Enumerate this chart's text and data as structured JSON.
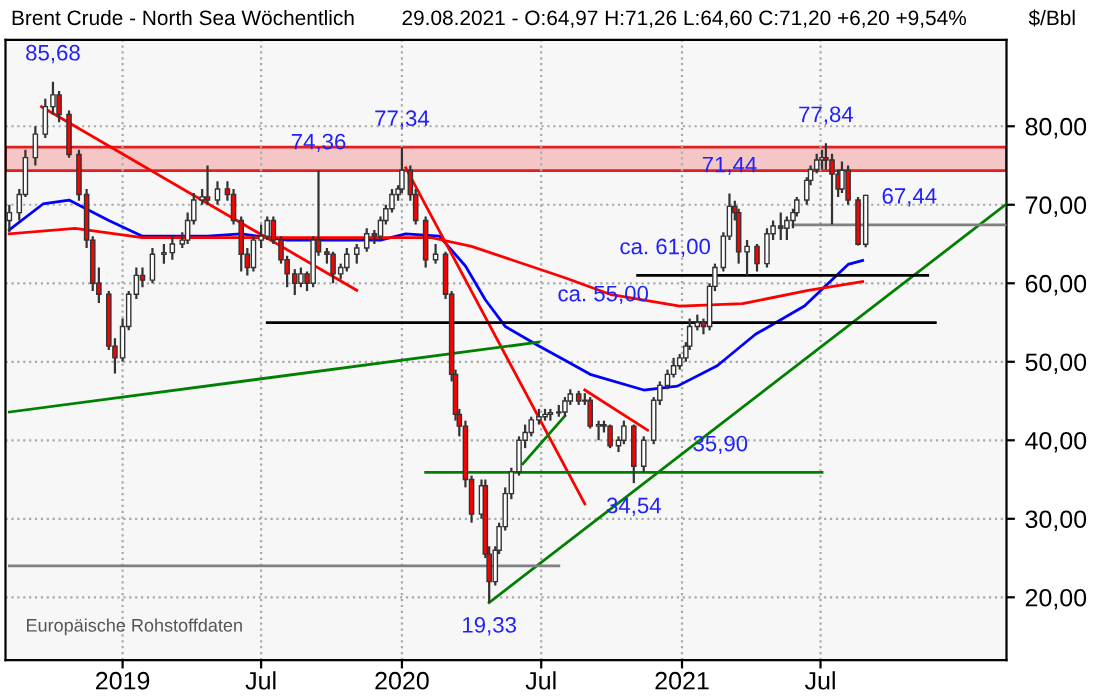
{
  "chart_data": {
    "type": "candlestick",
    "title": "Brent Crude - North Sea Wöchentlich",
    "subtitle": "29.08.2021 - O:64,97 H:71,26 L:64,60 C:71,20 +6,20 +9,54%",
    "ylabel": "$/Bbl",
    "x": [
      "2018-08-06",
      "2018-08-19",
      "2018-08-27",
      "2018-09-09",
      "2018-09-22",
      "2018-10-02",
      "2018-10-10",
      "2018-10-23",
      "2018-11-05",
      "2018-11-15",
      "2018-11-23",
      "2018-12-01",
      "2018-12-14",
      "2018-12-22",
      "2019-01-01",
      "2019-01-09",
      "2019-01-19",
      "2019-01-27",
      "2019-02-09",
      "2019-02-24",
      "2019-03-07",
      "2019-03-20",
      "2019-03-27",
      "2019-04-04",
      "2019-04-15",
      "2019-04-22",
      "2019-05-05",
      "2019-05-18",
      "2019-05-26",
      "2019-06-05",
      "2019-06-13",
      "2019-06-21",
      "2019-07-01",
      "2019-07-09",
      "2019-07-17",
      "2019-07-27",
      "2019-08-04",
      "2019-08-14",
      "2019-08-22",
      "2019-08-30",
      "2019-09-07",
      "2019-09-14",
      "2019-09-25",
      "2019-10-03",
      "2019-10-13",
      "2019-10-21",
      "2019-11-03",
      "2019-11-16",
      "2019-11-26",
      "2019-12-04",
      "2019-12-11",
      "2019-12-19",
      "2019-12-27",
      "2020-01-01",
      "2020-01-12",
      "2020-01-19",
      "2020-02-01",
      "2020-02-14",
      "2020-02-27",
      "2020-03-06",
      "2020-03-11",
      "2020-03-16",
      "2020-03-24",
      "2020-04-01",
      "2020-04-14",
      "2020-04-19",
      "2020-04-24",
      "2020-05-02",
      "2020-05-07",
      "2020-05-15",
      "2020-05-23",
      "2020-06-02",
      "2020-06-10",
      "2020-06-18",
      "2020-06-28",
      "2020-07-06",
      "2020-07-13",
      "2020-07-24",
      "2020-08-01",
      "2020-08-08",
      "2020-08-19",
      "2020-08-27",
      "2020-09-03",
      "2020-09-14",
      "2020-09-21",
      "2020-09-29",
      "2020-10-10",
      "2020-10-17",
      "2020-10-30",
      "2020-11-12",
      "2020-11-25",
      "2020-12-03",
      "2020-12-13",
      "2020-12-21",
      "2020-12-29",
      "2021-01-06",
      "2021-01-11",
      "2021-01-21",
      "2021-01-29",
      "2021-02-06",
      "2021-02-13",
      "2021-02-24",
      "2021-03-04",
      "2021-03-11",
      "2021-03-16",
      "2021-03-27",
      "2021-04-09",
      "2021-04-22",
      "2021-04-30",
      "2021-05-10",
      "2021-05-18",
      "2021-05-26",
      "2021-05-31",
      "2021-06-13",
      "2021-06-18",
      "2021-06-26",
      "2021-07-03",
      "2021-07-08",
      "2021-07-16",
      "2021-07-24",
      "2021-07-29",
      "2021-08-06",
      "2021-08-19",
      "2021-08-29"
    ],
    "ohlc": [
      [
        68,
        70,
        66.5,
        69
      ],
      [
        69,
        72,
        68,
        71.3
      ],
      [
        71.3,
        77,
        71,
        76
      ],
      [
        76,
        80,
        75,
        79
      ],
      [
        79,
        83.5,
        78.5,
        82.5
      ],
      [
        82.5,
        85.68,
        81.5,
        84
      ],
      [
        84,
        84.5,
        80.5,
        81.5
      ],
      [
        81.5,
        82,
        76,
        76.4
      ],
      [
        76.4,
        77,
        70.5,
        71.3
      ],
      [
        71.3,
        72,
        64.5,
        65.5
      ],
      [
        65.5,
        66,
        59,
        60
      ],
      [
        60,
        62,
        57.5,
        58.6
      ],
      [
        58.6,
        59,
        51.5,
        52
      ],
      [
        52,
        53,
        48.5,
        50.5
      ],
      [
        50.5,
        55.5,
        50,
        54.5
      ],
      [
        54.5,
        59,
        54,
        58.6
      ],
      [
        58.6,
        62,
        58,
        61
      ],
      [
        61,
        62,
        59.5,
        60.4
      ],
      [
        60.4,
        64.5,
        60,
        63.7
      ],
      [
        63.7,
        65,
        62.5,
        63.9
      ],
      [
        63.9,
        66,
        63,
        65
      ],
      [
        65,
        66.5,
        64.5,
        65.5
      ],
      [
        65.5,
        69,
        65,
        68
      ],
      [
        68,
        71.5,
        67.5,
        70.6
      ],
      [
        70.6,
        72,
        70,
        71
      ],
      [
        71,
        75,
        70,
        70.6
      ],
      [
        70.6,
        73,
        70,
        72
      ],
      [
        72,
        73,
        70.5,
        71.3
      ],
      [
        71.3,
        72,
        67.5,
        68
      ],
      [
        68,
        68.5,
        61.5,
        63.7
      ],
      [
        63.7,
        64.5,
        61,
        62
      ],
      [
        62,
        66,
        61.5,
        65.5
      ],
      [
        65.5,
        67.5,
        64.5,
        66
      ],
      [
        66,
        68.5,
        65.5,
        68
      ],
      [
        68,
        68.5,
        65,
        65.5
      ],
      [
        65.5,
        66,
        62.5,
        63
      ],
      [
        63,
        63.5,
        59.5,
        61.2
      ],
      [
        61.2,
        61.8,
        58.5,
        60
      ],
      [
        60,
        62,
        59.5,
        61.2
      ],
      [
        61.2,
        61.5,
        59,
        60
      ],
      [
        60,
        66,
        59.5,
        65.5
      ],
      [
        65.5,
        74.36,
        63.5,
        64
      ],
      [
        64,
        64.5,
        62.5,
        63.7
      ],
      [
        63.7,
        64,
        60,
        61.2
      ],
      [
        61.2,
        62.5,
        60.5,
        62
      ],
      [
        62,
        64.5,
        61.5,
        63.7
      ],
      [
        63.7,
        65,
        62.5,
        64.5
      ],
      [
        64.5,
        67,
        64,
        66.3
      ],
      [
        66.3,
        66.8,
        65,
        66
      ],
      [
        66,
        68.5,
        65.5,
        68
      ],
      [
        68,
        70,
        67.5,
        69.5
      ],
      [
        69.5,
        72,
        69,
        71.3
      ],
      [
        71.3,
        72.5,
        70.5,
        72
      ],
      [
        72,
        77.34,
        71.5,
        74.4
      ],
      [
        74.4,
        75,
        70.5,
        71.3
      ],
      [
        71.3,
        72,
        67.5,
        68
      ],
      [
        68,
        68.5,
        62,
        63
      ],
      [
        63,
        65,
        62.5,
        63.7
      ],
      [
        63.7,
        64,
        58,
        58.6
      ],
      [
        58.6,
        59,
        47.5,
        48.4
      ],
      [
        48.4,
        49,
        42.5,
        43.3
      ],
      [
        43.3,
        44,
        40.5,
        41.8
      ],
      [
        41.8,
        42.5,
        34,
        35
      ],
      [
        35,
        35.5,
        29.5,
        30.6
      ],
      [
        30.6,
        35,
        30,
        34.2
      ],
      [
        34.2,
        35,
        25,
        25.5
      ],
      [
        25.5,
        26.5,
        19.33,
        22
      ],
      [
        22,
        26.5,
        21.5,
        26
      ],
      [
        26,
        29.5,
        25.5,
        29
      ],
      [
        29,
        34,
        28.5,
        33.2
      ],
      [
        33.2,
        36.5,
        32.5,
        36
      ],
      [
        36,
        40.5,
        35.5,
        40
      ],
      [
        40,
        42,
        39,
        41
      ],
      [
        41,
        43,
        40.5,
        42.6
      ],
      [
        42.6,
        44,
        42,
        43
      ],
      [
        43,
        44,
        42.5,
        43.3
      ],
      [
        43.3,
        44,
        42.5,
        43.5
      ],
      [
        43.5,
        44.5,
        43,
        43.6
      ],
      [
        43.6,
        45.5,
        43,
        45
      ],
      [
        45,
        46.5,
        44.5,
        45.9
      ],
      [
        45.9,
        46.3,
        44.5,
        45
      ],
      [
        45,
        46,
        44.5,
        45.1
      ],
      [
        45.1,
        45.5,
        41.5,
        41.8
      ],
      [
        41.8,
        42.5,
        40,
        42
      ],
      [
        42,
        42.5,
        41,
        41.8
      ],
      [
        41.8,
        42,
        39,
        39.3
      ],
      [
        39.3,
        40.5,
        38.5,
        40
      ],
      [
        40,
        42.5,
        39.5,
        41.8
      ],
      [
        41.8,
        42,
        34.54,
        36.7
      ],
      [
        36.7,
        40.5,
        36,
        40
      ],
      [
        40,
        45.5,
        39.5,
        45.1
      ],
      [
        45.1,
        47.5,
        44.5,
        47
      ],
      [
        47,
        49,
        46.5,
        48.4
      ],
      [
        48.4,
        50.5,
        48,
        49.5
      ],
      [
        49.5,
        51,
        49,
        50.5
      ],
      [
        50.5,
        52.5,
        50,
        52
      ],
      [
        52,
        55.5,
        51.5,
        54.5
      ],
      [
        54.5,
        56,
        54,
        55
      ],
      [
        55,
        55.5,
        53.5,
        54.5
      ],
      [
        54.5,
        60,
        54,
        59.6
      ],
      [
        59.6,
        62.5,
        59,
        62
      ],
      [
        62,
        66.5,
        61.5,
        66
      ],
      [
        66,
        71.44,
        65.5,
        69.8
      ],
      [
        69.8,
        70.5,
        68,
        69
      ],
      [
        69,
        69.5,
        62.5,
        64
      ],
      [
        64,
        65.5,
        61,
        64.7
      ],
      [
        64.7,
        65,
        61.5,
        62.5
      ],
      [
        62.5,
        67,
        62,
        66.3
      ],
      [
        66.3,
        68,
        65.5,
        67.3
      ],
      [
        67.3,
        69,
        65.5,
        67
      ],
      [
        67,
        68.5,
        65.5,
        68
      ],
      [
        68,
        69.5,
        67,
        69
      ],
      [
        69,
        71,
        68.5,
        70.6
      ],
      [
        70.6,
        73.5,
        70,
        73.1
      ],
      [
        73.1,
        75,
        72.5,
        74.5
      ],
      [
        74.5,
        76.5,
        74,
        75.7
      ],
      [
        75.7,
        77,
        74.5,
        76
      ],
      [
        76,
        77.84,
        74.5,
        75.7
      ],
      [
        75.7,
        76.5,
        67.5,
        73.9
      ],
      [
        73.9,
        74.5,
        71,
        72
      ],
      [
        72,
        75.5,
        71.5,
        74.4
      ],
      [
        74.4,
        75,
        70,
        70.6
      ],
      [
        70.6,
        71,
        64.8,
        64.97
      ],
      [
        64.97,
        71.26,
        64.6,
        71.2
      ]
    ],
    "series": [
      {
        "type": "line",
        "color": "#0000ff",
        "x": [
          "2018-08-06",
          "2018-09-19",
          "2018-10-23",
          "2018-12-14",
          "2019-01-27",
          "2019-04-22",
          "2019-06-05",
          "2019-08-04",
          "2019-10-13",
          "2019-12-04",
          "2020-01-06",
          "2020-02-19",
          "2020-03-24",
          "2020-04-19",
          "2020-05-15",
          "2020-06-28",
          "2020-08-01",
          "2020-09-03",
          "2020-11-12",
          "2020-12-26",
          "2021-02-16",
          "2021-04-07",
          "2021-06-10",
          "2021-08-06",
          "2021-08-25"
        ],
        "values": [
          66.8,
          70.1,
          70.6,
          68,
          66,
          66,
          66.3,
          65.5,
          65.5,
          65.5,
          66.3,
          66,
          62.2,
          57.9,
          54.5,
          52,
          50.2,
          48.4,
          46.4,
          46.9,
          49.5,
          53.5,
          57.1,
          62.4,
          62.9
        ]
      },
      {
        "type": "line",
        "color": "#ff0000",
        "x": [
          "2018-08-06",
          "2018-10-31",
          "2019-01-27",
          "2019-07-17",
          "2020-02-09",
          "2020-04-01",
          "2020-08-01",
          "2020-09-29",
          "2020-12-29",
          "2021-03-21",
          "2021-06-15",
          "2021-08-25"
        ],
        "values": [
          66.3,
          67,
          65.8,
          65.8,
          65.8,
          64.7,
          60.7,
          58.6,
          57.1,
          57.4,
          59.1,
          60.2
        ]
      },
      {
        "type": "line",
        "color": "#ff0000",
        "x": [
          "2018-09-17",
          "2019-11-03"
        ],
        "values": [
          82.5,
          59.1
        ]
      },
      {
        "type": "line",
        "color": "#ff0000",
        "x": [
          "2020-01-06",
          "2020-08-27"
        ],
        "values": [
          74.7,
          31.9
        ]
      },
      {
        "type": "line",
        "color": "#ff0000",
        "x": [
          "2020-08-27",
          "2020-11-17"
        ],
        "values": [
          46.4,
          41.3
        ]
      },
      {
        "type": "line",
        "color": "#008000",
        "x": [
          "2018-08-06",
          "2020-06-28"
        ],
        "values": [
          43.6,
          52.5
        ]
      },
      {
        "type": "line",
        "color": "#008000",
        "x": [
          "2020-04-24",
          "2022-03-01"
        ],
        "values": [
          19.33,
          70.1
        ]
      },
      {
        "type": "line",
        "color": "#008000",
        "x": [
          "2020-06-07",
          "2020-08-01"
        ],
        "values": [
          37,
          43.1
        ]
      },
      {
        "type": "line",
        "color": "#808080",
        "x": [
          "2018-08-06",
          "2020-07-24"
        ],
        "values": [
          24,
          24
        ]
      },
      {
        "type": "line",
        "color": "#808080",
        "x": [
          "2021-05-26",
          "2022-03-01"
        ],
        "values": [
          67.44,
          67.44
        ]
      },
      {
        "type": "line",
        "color": "#000000",
        "x": [
          "2019-07-09",
          "2021-11-28"
        ],
        "values": [
          55,
          55
        ]
      },
      {
        "type": "line",
        "color": "#000000",
        "x": [
          "2020-11-04",
          "2021-11-18"
        ],
        "values": [
          61,
          61
        ]
      },
      {
        "type": "line",
        "color": "#008000",
        "x": [
          "2020-02-01",
          "2021-07-03"
        ],
        "values": [
          35.9,
          35.9
        ]
      }
    ],
    "bands": [
      {
        "axis": "y",
        "from": 74.36,
        "to": 77.34,
        "color": "#f5c6c6"
      }
    ],
    "annotations": [
      {
        "text": "85,68",
        "x": "2018-10-02",
        "y": 85.68
      },
      {
        "text": "74,36",
        "x": "2019-09-14",
        "y": 74.36
      },
      {
        "text": "77,34",
        "x": "2020-01-01",
        "y": 77.34
      },
      {
        "text": "19,33",
        "x": "2020-04-24",
        "y": 19.33
      },
      {
        "text": "34,54",
        "x": "2020-10-30",
        "y": 34.54
      },
      {
        "text": "71,44",
        "x": "2021-03-04",
        "y": 71.44
      },
      {
        "text": "77,84",
        "x": "2021-07-08",
        "y": 77.84
      },
      {
        "text": "ca. 55,00",
        "x": "2020-09-20",
        "y": 55
      },
      {
        "text": "ca. 61,00",
        "x": "2020-12-10",
        "y": 61
      },
      {
        "text": "35,90",
        "x": "2021-02-20",
        "y": 35.9
      },
      {
        "text": "67,44",
        "x": "2021-10-25",
        "y": 67.44
      },
      "Europäische Rohstoffdaten"
    ],
    "xlim": [
      "2018-08-01",
      "2022-03-01"
    ],
    "ylim": [
      12,
      91
    ],
    "xticks": [
      {
        "value": "2019-01-01",
        "label": "2019"
      },
      {
        "value": "2019-07-01",
        "label": "Jul"
      },
      {
        "value": "2020-01-01",
        "label": "2020"
      },
      {
        "value": "2020-07-01",
        "label": "Jul"
      },
      {
        "value": "2021-01-01",
        "label": "2021"
      },
      {
        "value": "2021-07-01",
        "label": "Jul"
      }
    ],
    "yticks": [
      {
        "value": 20,
        "label": "20,00"
      },
      {
        "value": 30,
        "label": "30,00"
      },
      {
        "value": 40,
        "label": "40,00"
      },
      {
        "value": 50,
        "label": "50,00"
      },
      {
        "value": 60,
        "label": "60,00"
      },
      {
        "value": 70,
        "label": "70,00"
      },
      {
        "value": 80,
        "label": "80,00"
      }
    ],
    "grid": true,
    "legend": false
  }
}
